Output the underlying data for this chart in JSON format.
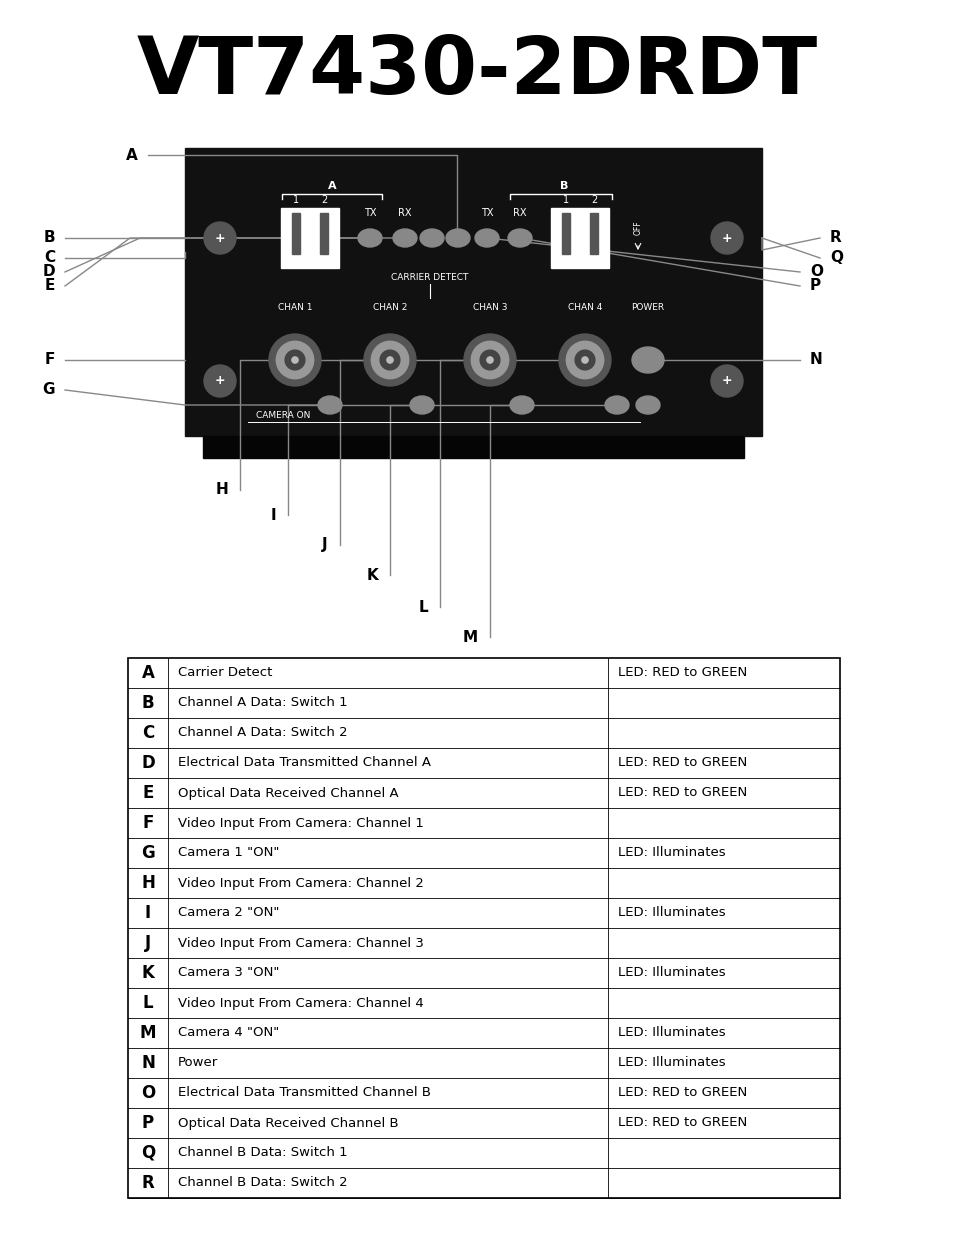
{
  "title": "VT7430-2DRDT",
  "title_fontsize": 58,
  "bg_color": "#ffffff",
  "table_rows": [
    [
      "A",
      "Carrier Detect",
      "LED: RED to GREEN"
    ],
    [
      "B",
      "Channel A Data: Switch 1",
      ""
    ],
    [
      "C",
      "Channel A Data: Switch 2",
      ""
    ],
    [
      "D",
      "Electrical Data Transmitted Channel A",
      "LED: RED to GREEN"
    ],
    [
      "E",
      "Optical Data Received Channel A",
      "LED: RED to GREEN"
    ],
    [
      "F",
      "Video Input From Camera: Channel 1",
      ""
    ],
    [
      "G",
      "Camera 1 \"ON\"",
      "LED: Illuminates"
    ],
    [
      "H",
      "Video Input From Camera: Channel 2",
      ""
    ],
    [
      "I",
      "Camera 2 \"ON\"",
      "LED: Illuminates"
    ],
    [
      "J",
      "Video Input From Camera: Channel 3",
      ""
    ],
    [
      "K",
      "Camera 3 \"ON\"",
      "LED: Illuminates"
    ],
    [
      "L",
      "Video Input From Camera: Channel 4",
      ""
    ],
    [
      "M",
      "Camera 4 \"ON\"",
      "LED: Illuminates"
    ],
    [
      "N",
      "Power",
      "LED: Illuminates"
    ],
    [
      "O",
      "Electrical Data Transmitted Channel B",
      "LED: RED to GREEN"
    ],
    [
      "P",
      "Optical Data Received Channel B",
      "LED: RED to GREEN"
    ],
    [
      "Q",
      "Channel B Data: Switch 1",
      ""
    ],
    [
      "R",
      "Channel B Data: Switch 2",
      ""
    ]
  ],
  "board_color": "#111111",
  "led_color": "#888888",
  "label_color": "#000000",
  "line_color": "#888888"
}
